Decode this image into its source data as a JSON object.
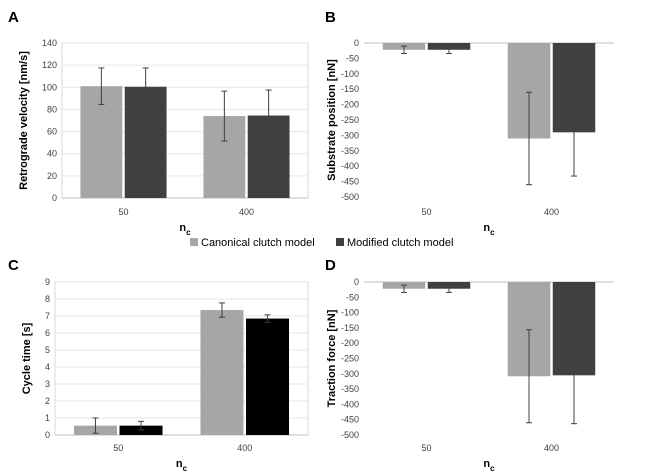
{
  "legend": {
    "items": [
      {
        "label": "Canonical clutch model",
        "color": "#a6a6a6"
      },
      {
        "label": "Modified clutch model",
        "color": "#404040"
      }
    ]
  },
  "chart_data": [
    {
      "panel": "A",
      "type": "bar",
      "categories": [
        "50",
        "400"
      ],
      "ylabel": "Retrograde velocity [nm/s]",
      "xlabel": "n",
      "xlabel_sub": "c",
      "ylim": [
        0,
        140
      ],
      "yticks": [
        0,
        20,
        40,
        60,
        80,
        100,
        120,
        140
      ],
      "grid": "horizontal",
      "series": [
        {
          "name": "Canonical clutch model",
          "color": "#a6a6a6",
          "values": [
            101,
            74
          ],
          "errors": [
            16.5,
            22.5
          ]
        },
        {
          "name": "Modified clutch model",
          "color": "#404040",
          "values": [
            100.5,
            74.5
          ],
          "errors": [
            17,
            23
          ]
        }
      ]
    },
    {
      "panel": "B",
      "type": "bar",
      "categories": [
        "50",
        "400"
      ],
      "ylabel": "Substrate position [nN]",
      "xlabel": "n",
      "xlabel_sub": "c",
      "ylim": [
        -500,
        0
      ],
      "yticks": [
        0,
        -50,
        -100,
        -150,
        -200,
        -250,
        -300,
        -350,
        -400,
        -450,
        -500
      ],
      "grid": "none",
      "series": [
        {
          "name": "Canonical clutch model",
          "color": "#a6a6a6",
          "values": [
            -22,
            -310
          ],
          "errors": [
            12,
            150
          ]
        },
        {
          "name": "Modified clutch model",
          "color": "#404040",
          "values": [
            -22,
            -290
          ],
          "errors": [
            12,
            142
          ]
        }
      ]
    },
    {
      "panel": "C",
      "type": "bar",
      "categories": [
        "50",
        "400"
      ],
      "ylabel": "Cycle time [s]",
      "xlabel": "n",
      "xlabel_sub": "c",
      "ylim": [
        0,
        9
      ],
      "yticks": [
        0,
        1,
        2,
        3,
        4,
        5,
        6,
        7,
        8,
        9
      ],
      "grid": "horizontal",
      "series": [
        {
          "name": "Canonical clutch model",
          "color": "#a6a6a6",
          "values": [
            0.55,
            7.35
          ],
          "errors": [
            0.45,
            0.42
          ]
        },
        {
          "name": "Modified clutch model",
          "color": "#000000",
          "values": [
            0.55,
            6.85
          ],
          "errors": [
            0.25,
            0.22
          ]
        }
      ]
    },
    {
      "panel": "D",
      "type": "bar",
      "categories": [
        "50",
        "400"
      ],
      "ylabel": "Traction force [nN]",
      "xlabel": "n",
      "xlabel_sub": "c",
      "ylim": [
        -500,
        0
      ],
      "yticks": [
        0,
        -50,
        -100,
        -150,
        -200,
        -250,
        -300,
        -350,
        -400,
        -450,
        -500
      ],
      "grid": "none",
      "series": [
        {
          "name": "Canonical clutch model",
          "color": "#a6a6a6",
          "values": [
            -22,
            -308
          ],
          "errors": [
            12,
            152
          ]
        },
        {
          "name": "Modified clutch model",
          "color": "#404040",
          "values": [
            -22,
            -305
          ],
          "errors": [
            12,
            158
          ]
        }
      ]
    }
  ]
}
